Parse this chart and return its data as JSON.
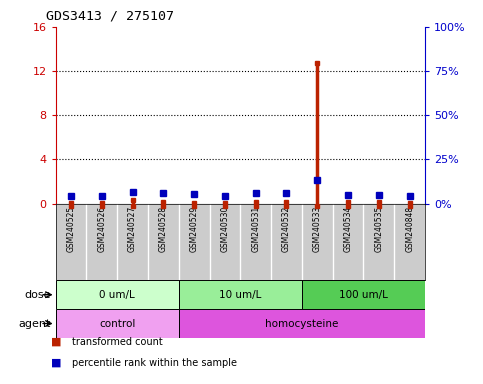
{
  "title": "GDS3413 / 275107",
  "samples": [
    "GSM240525",
    "GSM240526",
    "GSM240527",
    "GSM240528",
    "GSM240529",
    "GSM240530",
    "GSM240531",
    "GSM240532",
    "GSM240533",
    "GSM240534",
    "GSM240535",
    "GSM240848"
  ],
  "transformed_count": [
    0.08,
    0.08,
    0.28,
    0.12,
    0.08,
    0.08,
    0.12,
    0.12,
    12.7,
    0.12,
    0.12,
    0.04
  ],
  "percentile_rank": [
    4.0,
    4.0,
    6.3,
    6.1,
    5.4,
    4.1,
    6.1,
    5.8,
    13.5,
    4.95,
    4.95,
    4.0
  ],
  "ylim_left": [
    0,
    16
  ],
  "ylim_right": [
    0,
    100
  ],
  "yticks_left": [
    0,
    4,
    8,
    12,
    16
  ],
  "yticks_right": [
    0,
    25,
    50,
    75,
    100
  ],
  "ytick_labels_left": [
    "0",
    "4",
    "8",
    "12",
    "16"
  ],
  "ytick_labels_right": [
    "0%",
    "25%",
    "50%",
    "75%",
    "100%"
  ],
  "dose_groups": [
    {
      "label": "0 um/L",
      "start": 0,
      "end": 4,
      "color": "#c8f0c8"
    },
    {
      "label": "10 um/L",
      "start": 4,
      "end": 8,
      "color": "#90EE90"
    },
    {
      "label": "100 um/L",
      "start": 8,
      "end": 12,
      "color": "#55cc55"
    }
  ],
  "agent_groups": [
    {
      "label": "control",
      "start": 0,
      "end": 4,
      "color": "#ee88ee"
    },
    {
      "label": "homocysteine",
      "start": 4,
      "end": 12,
      "color": "#dd55dd"
    }
  ],
  "dose_label": "dose",
  "agent_label": "agent",
  "bar_color": "#BB2200",
  "dot_color": "#0000BB",
  "legend_items": [
    {
      "label": "transformed count",
      "color": "#BB2200"
    },
    {
      "label": "percentile rank within the sample",
      "color": "#0000BB"
    }
  ],
  "grid_color": "black",
  "plot_bg": "white",
  "sample_bg": "#CCCCCC",
  "title_color": "black",
  "left_axis_color": "#CC0000",
  "right_axis_color": "#0000CC"
}
